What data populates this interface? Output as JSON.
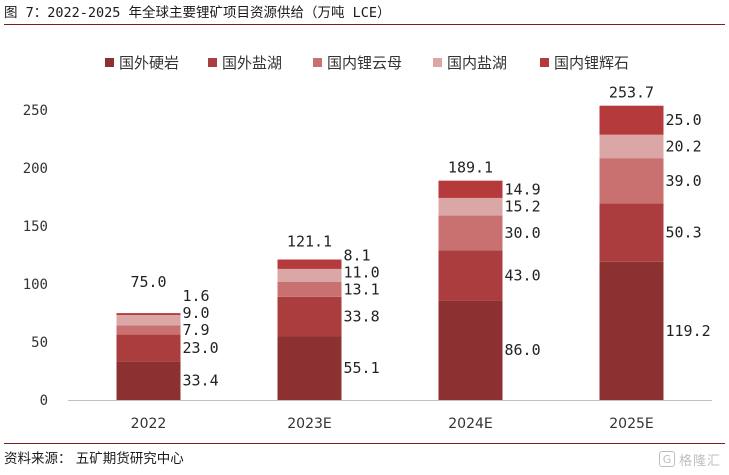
{
  "header": {
    "title": "图 7：2022-2025 年全球主要锂矿项目资源供给（万吨 LCE）"
  },
  "footer": {
    "source": "资料来源： 五矿期货研究中心",
    "watermark_text": "格隆汇",
    "watermark_icon": "G"
  },
  "colors": {
    "series": [
      "#8c3032",
      "#ab3d3e",
      "#c97070",
      "#dba7a6",
      "#b53a3c"
    ],
    "axis": "#bfbfbf",
    "text": "#333333"
  },
  "chart_data": {
    "type": "bar",
    "stacked": true,
    "title": "",
    "xlabel": "",
    "ylabel": "",
    "categories": [
      "2022",
      "2023E",
      "2024E",
      "2025E"
    ],
    "ylim": [
      0,
      250
    ],
    "yticks": [
      0,
      50,
      100,
      150,
      200,
      250
    ],
    "grid": false,
    "legend_position": "top",
    "series": [
      {
        "name": "国外硬岩",
        "values": [
          33.4,
          55.1,
          86.0,
          119.2
        ],
        "labels": [
          "33.4",
          "55.1",
          "86.0",
          "119.2"
        ]
      },
      {
        "name": "国外盐湖",
        "values": [
          23.0,
          33.8,
          43.0,
          50.3
        ],
        "labels": [
          "23.0",
          "33.8",
          "43.0",
          "50.3"
        ]
      },
      {
        "name": "国内锂云母",
        "values": [
          7.9,
          13.1,
          30.0,
          39.0
        ],
        "labels": [
          "7.9",
          "13.1",
          "30.0",
          "39.0"
        ]
      },
      {
        "name": "国内盐湖",
        "values": [
          9.0,
          11.0,
          15.2,
          20.2
        ],
        "labels": [
          "9.0",
          "11.0",
          "15.2",
          "20.2"
        ]
      },
      {
        "name": "国内锂辉石",
        "values": [
          1.6,
          8.1,
          14.9,
          25.0
        ],
        "labels": [
          "1.6",
          "8.1",
          "14.9",
          "25.0"
        ]
      }
    ],
    "totals": [
      "75.0",
      "121.1",
      "189.1",
      "253.7"
    ]
  }
}
